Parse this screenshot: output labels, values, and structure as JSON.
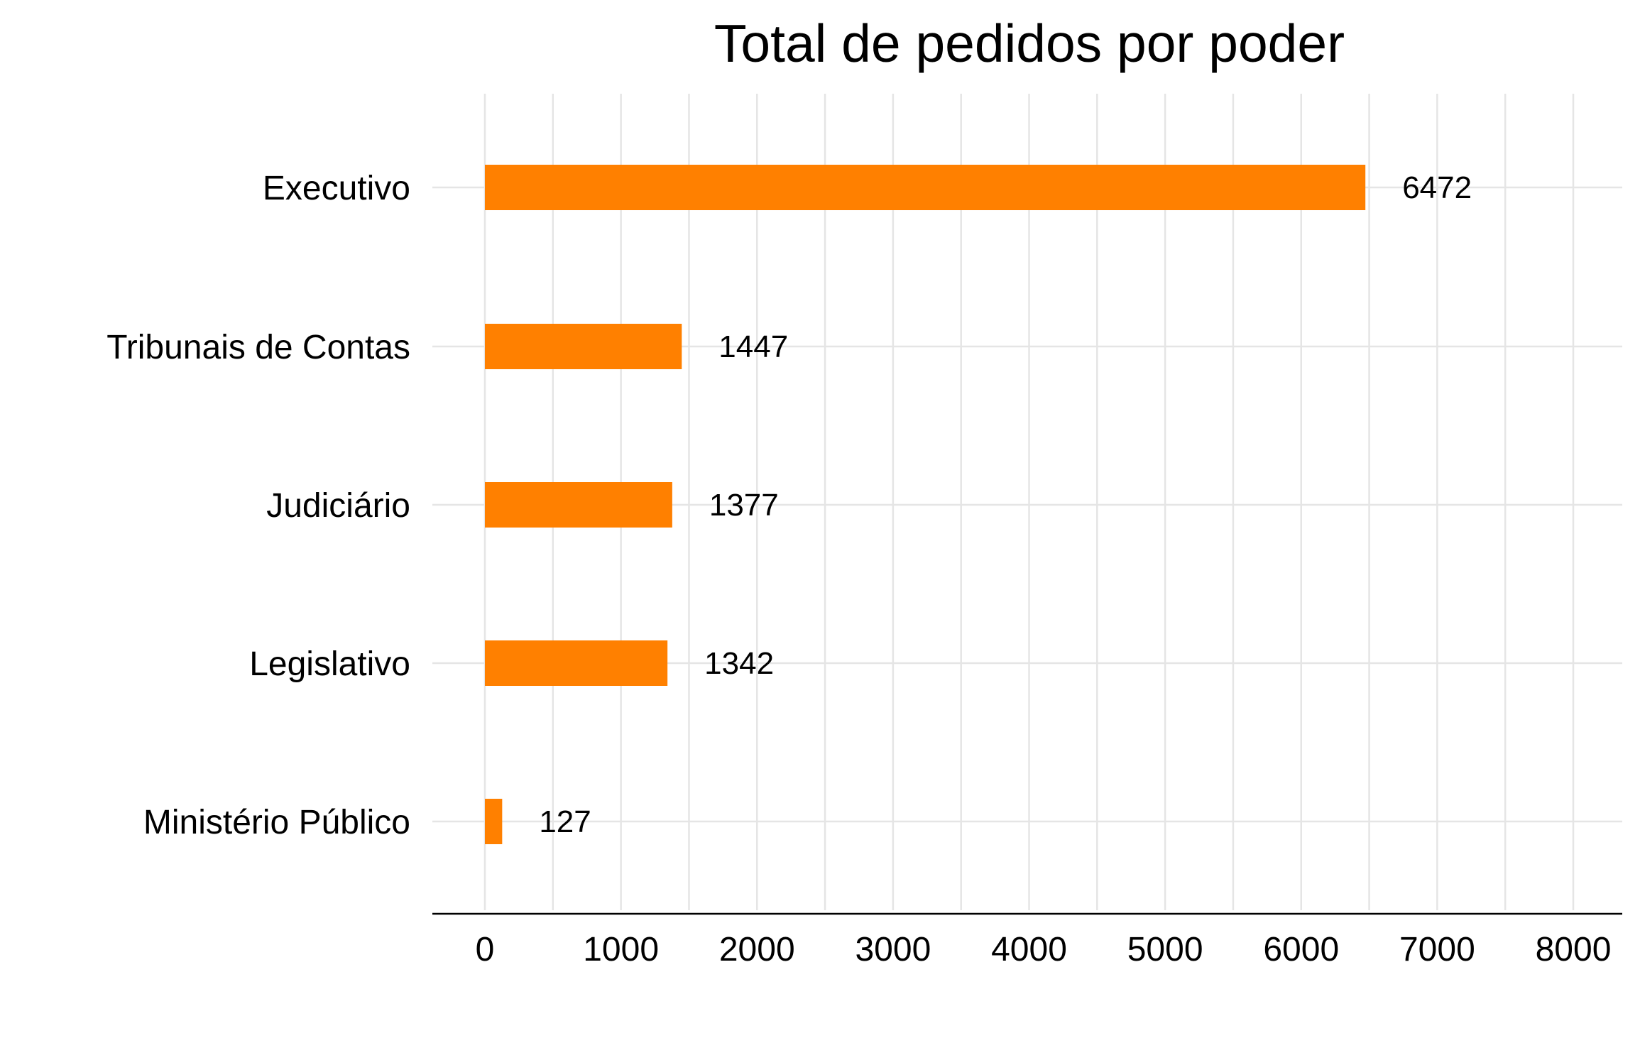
{
  "chart_data": {
    "type": "bar",
    "orientation": "horizontal",
    "title": "Total de pedidos por poder",
    "xlabel": "",
    "ylabel": "",
    "categories": [
      "Executivo",
      "Tribunais de Contas",
      "Judiciário",
      "Legislativo",
      "Ministério Público"
    ],
    "values": [
      6472,
      1447,
      1377,
      1342,
      127
    ],
    "data_labels": [
      "6472",
      "1447",
      "1377",
      "1342",
      "127"
    ],
    "xlim": [
      0,
      8000
    ],
    "xticks": [
      0,
      1000,
      2000,
      3000,
      4000,
      5000,
      6000,
      7000,
      8000
    ],
    "xtick_labels": [
      "0",
      "1000",
      "2000",
      "3000",
      "4000",
      "5000",
      "6000",
      "7000",
      "8000"
    ],
    "grid": true,
    "legend": "none",
    "colors": {
      "bar": "#FF8000",
      "grid": "#E5E5E5",
      "axis": "#000000"
    }
  }
}
